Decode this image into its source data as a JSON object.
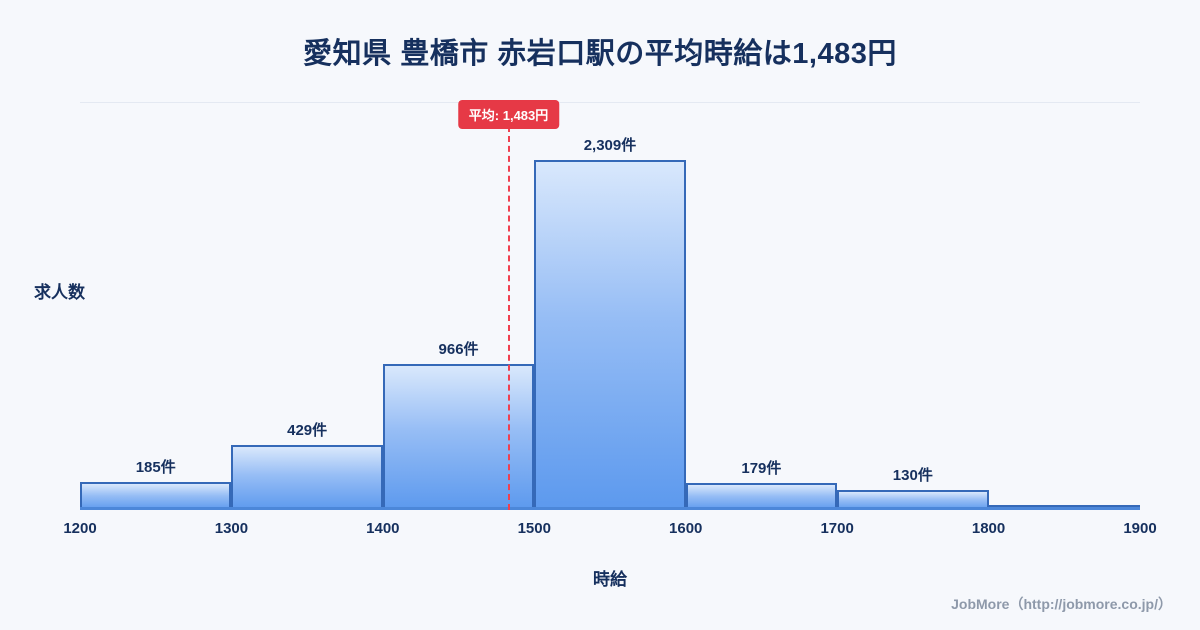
{
  "title": "愛知県 豊橋市 赤岩口駅の平均時給は1,483円",
  "average": {
    "value": 1483,
    "badge_label": "平均: 1,483円"
  },
  "footer": {
    "credit": "JobMore（http://jobmore.co.jp/）"
  },
  "chart_data": {
    "type": "bar",
    "title": "愛知県 豊橋市 赤岩口駅の平均時給は1,483円",
    "xlabel": "時給",
    "ylabel": "求人数",
    "xlim": [
      1200,
      1900
    ],
    "ylim": [
      0,
      2400
    ],
    "x_ticks": [
      1200,
      1300,
      1400,
      1500,
      1600,
      1700,
      1800,
      1900
    ],
    "bins": [
      {
        "range": [
          1200,
          1300
        ],
        "value": 185,
        "label": "185件"
      },
      {
        "range": [
          1300,
          1400
        ],
        "value": 429,
        "label": "429件"
      },
      {
        "range": [
          1400,
          1500
        ],
        "value": 966,
        "label": "966件"
      },
      {
        "range": [
          1500,
          1600
        ],
        "value": 2309,
        "label": "2,309件"
      },
      {
        "range": [
          1600,
          1700
        ],
        "value": 179,
        "label": "179件"
      },
      {
        "range": [
          1700,
          1800
        ],
        "value": 130,
        "label": "130件"
      },
      {
        "range": [
          1800,
          1900
        ],
        "value": 30,
        "label": ""
      }
    ],
    "average_line": {
      "x": 1483,
      "label": "平均: 1,483円"
    },
    "legend": "none",
    "grid": "minimal",
    "colors": {
      "background": "#f6f8fc",
      "title_text": "#16305e",
      "bar_fill_top": "#d9e8fc",
      "bar_fill_bottom": "#5c99ee",
      "bar_border": "#3569b8",
      "axis_line": "#4c87d9",
      "average_line": "#f04050",
      "average_badge": "#e63946",
      "footer_text": "#8e99aa"
    }
  }
}
